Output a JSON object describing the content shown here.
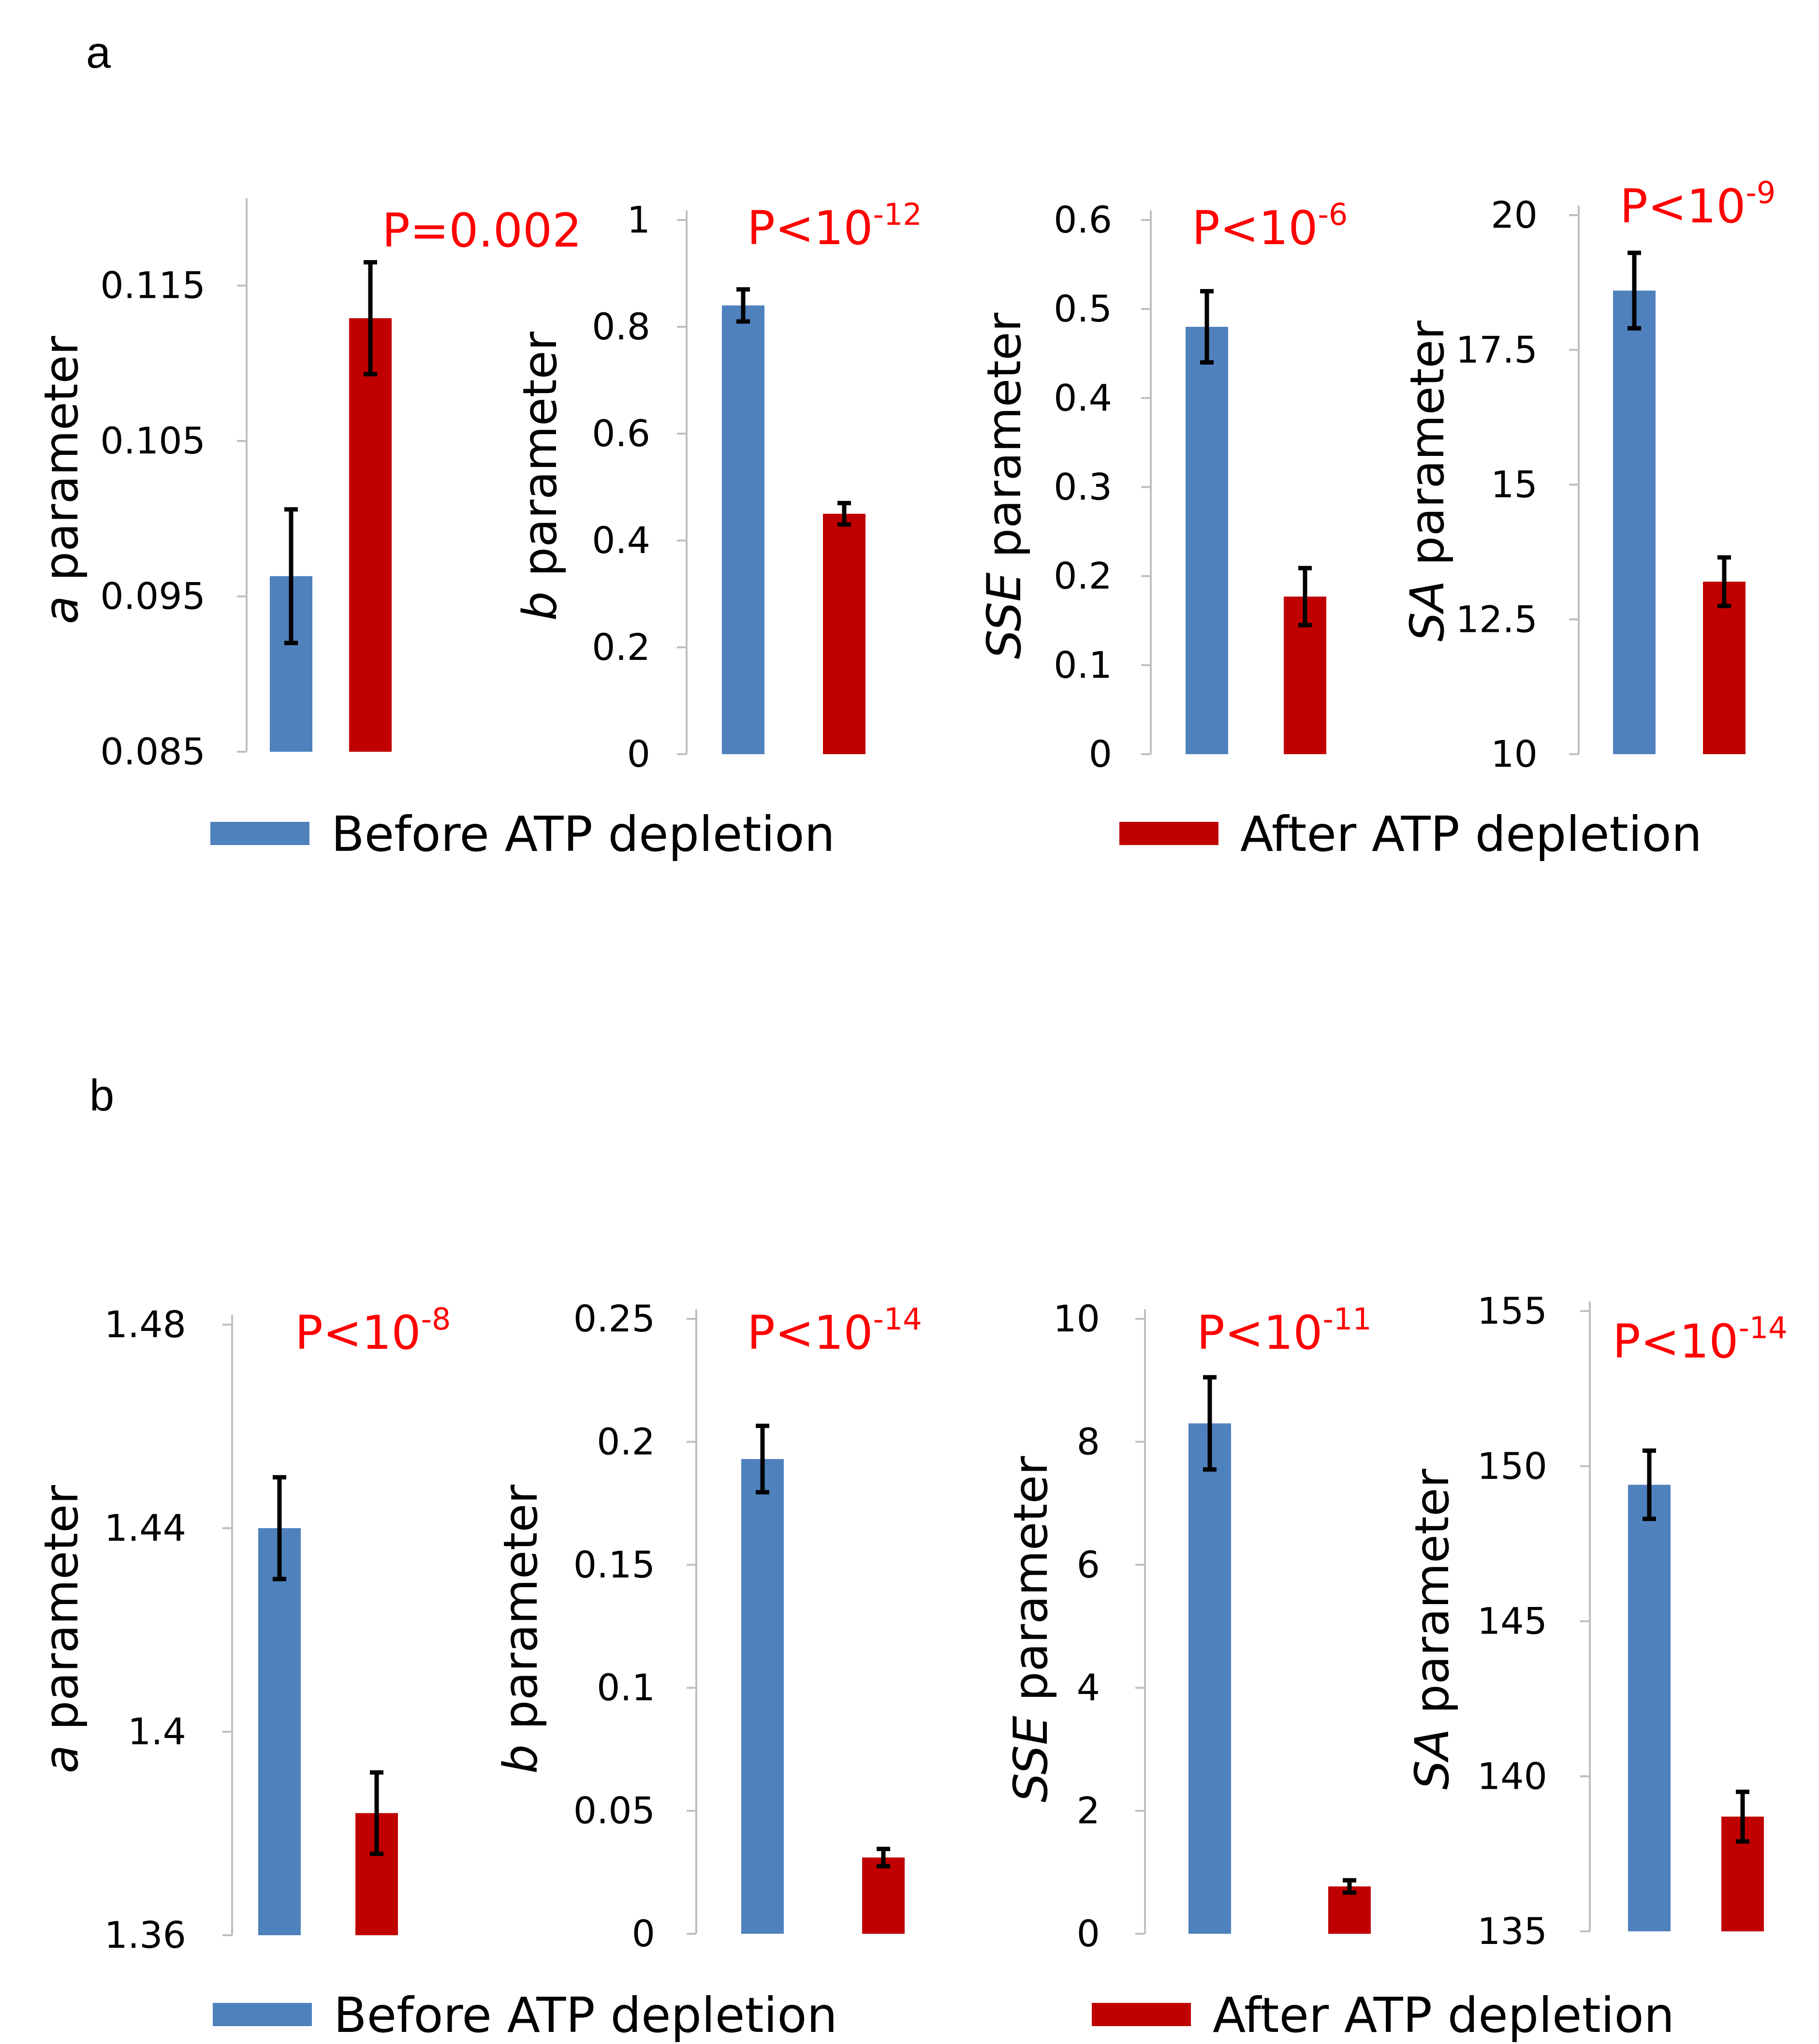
{
  "colors": {
    "before": "#4f81bd",
    "after": "#c00000",
    "pvalue": "#ff0000"
  },
  "legend": {
    "before": "Before ATP depletion",
    "after": "After ATP depletion"
  },
  "chart_data": [
    {
      "id": "a-alpha",
      "panel": "a",
      "type": "bar",
      "categories": [
        "Before ATP depletion",
        "After ATP depletion"
      ],
      "ylabel_var": "a",
      "ylabel_rest": " parameter",
      "pvalue_text": "P=0.002",
      "pvalue_exp": "",
      "ylim": [
        0.085,
        0.12
      ],
      "ticks": [
        0.085,
        0.095,
        0.105,
        0.115
      ],
      "tick_labels": [
        "0.085",
        "0.095",
        "0.105",
        "0.115"
      ],
      "values": [
        0.0963,
        0.1129
      ],
      "errors": [
        0.0043,
        0.0036
      ]
    },
    {
      "id": "a-b",
      "panel": "a",
      "type": "bar",
      "categories": [
        "Before ATP depletion",
        "After ATP depletion"
      ],
      "ylabel_var": "b",
      "ylabel_rest": " parameter",
      "pvalue_text": "P<10",
      "pvalue_exp": "-12",
      "ylim": [
        0,
        1
      ],
      "ticks": [
        0,
        0.2,
        0.4,
        0.6,
        0.8,
        1
      ],
      "tick_labels": [
        "0",
        "0.2",
        "0.4",
        "0.6",
        "0.8",
        "1"
      ],
      "values": [
        0.84,
        0.45
      ],
      "errors": [
        0.03,
        0.02
      ]
    },
    {
      "id": "a-sse",
      "panel": "a",
      "type": "bar",
      "categories": [
        "Before ATP depletion",
        "After ATP depletion"
      ],
      "ylabel_var": "SSE",
      "ylabel_rest": " parameter",
      "pvalue_text": "P<10",
      "pvalue_exp": "-6",
      "ylim": [
        0,
        0.6
      ],
      "ticks": [
        0,
        0.1,
        0.2,
        0.3,
        0.4,
        0.5,
        0.6
      ],
      "tick_labels": [
        "0",
        "0.1",
        "0.2",
        "0.3",
        "0.4",
        "0.5",
        "0.6"
      ],
      "values": [
        0.48,
        0.177
      ],
      "errors": [
        0.04,
        0.032
      ]
    },
    {
      "id": "a-sa",
      "panel": "a",
      "type": "bar",
      "categories": [
        "Before ATP depletion",
        "After ATP depletion"
      ],
      "ylabel_var": "SA",
      "ylabel_rest": " parameter",
      "pvalue_text": "P<10",
      "pvalue_exp": "-9",
      "ylim": [
        10,
        20
      ],
      "ticks": [
        10,
        12.5,
        15,
        17.5,
        20
      ],
      "tick_labels": [
        "10",
        "12.5",
        "15",
        "17.5",
        "20"
      ],
      "values": [
        18.6,
        13.2
      ],
      "errors": [
        0.7,
        0.45
      ]
    },
    {
      "id": "b-alpha",
      "panel": "b",
      "type": "bar",
      "categories": [
        "Before ATP depletion",
        "After ATP depletion"
      ],
      "ylabel_var": "a",
      "ylabel_rest": " parameter",
      "pvalue_text": "P<10",
      "pvalue_exp": "-8",
      "ylim": [
        1.36,
        1.48
      ],
      "ticks": [
        1.36,
        1.4,
        1.44,
        1.48
      ],
      "tick_labels": [
        "1.36",
        "1.4",
        "1.44",
        "1.48"
      ],
      "values": [
        1.44,
        1.384
      ],
      "errors": [
        0.01,
        0.008
      ]
    },
    {
      "id": "b-b",
      "panel": "b",
      "type": "bar",
      "categories": [
        "Before ATP depletion",
        "After ATP depletion"
      ],
      "ylabel_var": "b",
      "ylabel_rest": " parameter",
      "pvalue_text": "P<10",
      "pvalue_exp": "-14",
      "ylim": [
        0,
        0.25
      ],
      "ticks": [
        0,
        0.05,
        0.1,
        0.15,
        0.2,
        0.25
      ],
      "tick_labels": [
        "0",
        "0.05",
        "0.1",
        "0.15",
        "0.2",
        "0.25"
      ],
      "values": [
        0.193,
        0.031
      ],
      "errors": [
        0.0135,
        0.0035
      ]
    },
    {
      "id": "b-sse",
      "panel": "b",
      "type": "bar",
      "categories": [
        "Before ATP depletion",
        "After ATP depletion"
      ],
      "ylabel_var": "SSE",
      "ylabel_rest": " parameter",
      "pvalue_text": "P<10",
      "pvalue_exp": "-11",
      "ylim": [
        0,
        10
      ],
      "ticks": [
        0,
        2,
        4,
        6,
        8,
        10
      ],
      "tick_labels": [
        "0",
        "2",
        "4",
        "6",
        "8",
        "10"
      ],
      "values": [
        8.3,
        0.77
      ],
      "errors": [
        0.75,
        0.1
      ]
    },
    {
      "id": "b-sa",
      "panel": "b",
      "type": "bar",
      "categories": [
        "Before ATP depletion",
        "After ATP depletion"
      ],
      "ylabel_var": "SA",
      "ylabel_rest": " parameter",
      "pvalue_text": "P<10",
      "pvalue_exp": "-14",
      "ylim": [
        135,
        155
      ],
      "ticks": [
        135,
        140,
        145,
        150,
        155
      ],
      "tick_labels": [
        "135",
        "140",
        "145",
        "150",
        "155"
      ],
      "values": [
        149.4,
        138.7
      ],
      "errors": [
        1.1,
        0.8
      ]
    }
  ],
  "panels": {
    "a": "a",
    "b": "b"
  }
}
